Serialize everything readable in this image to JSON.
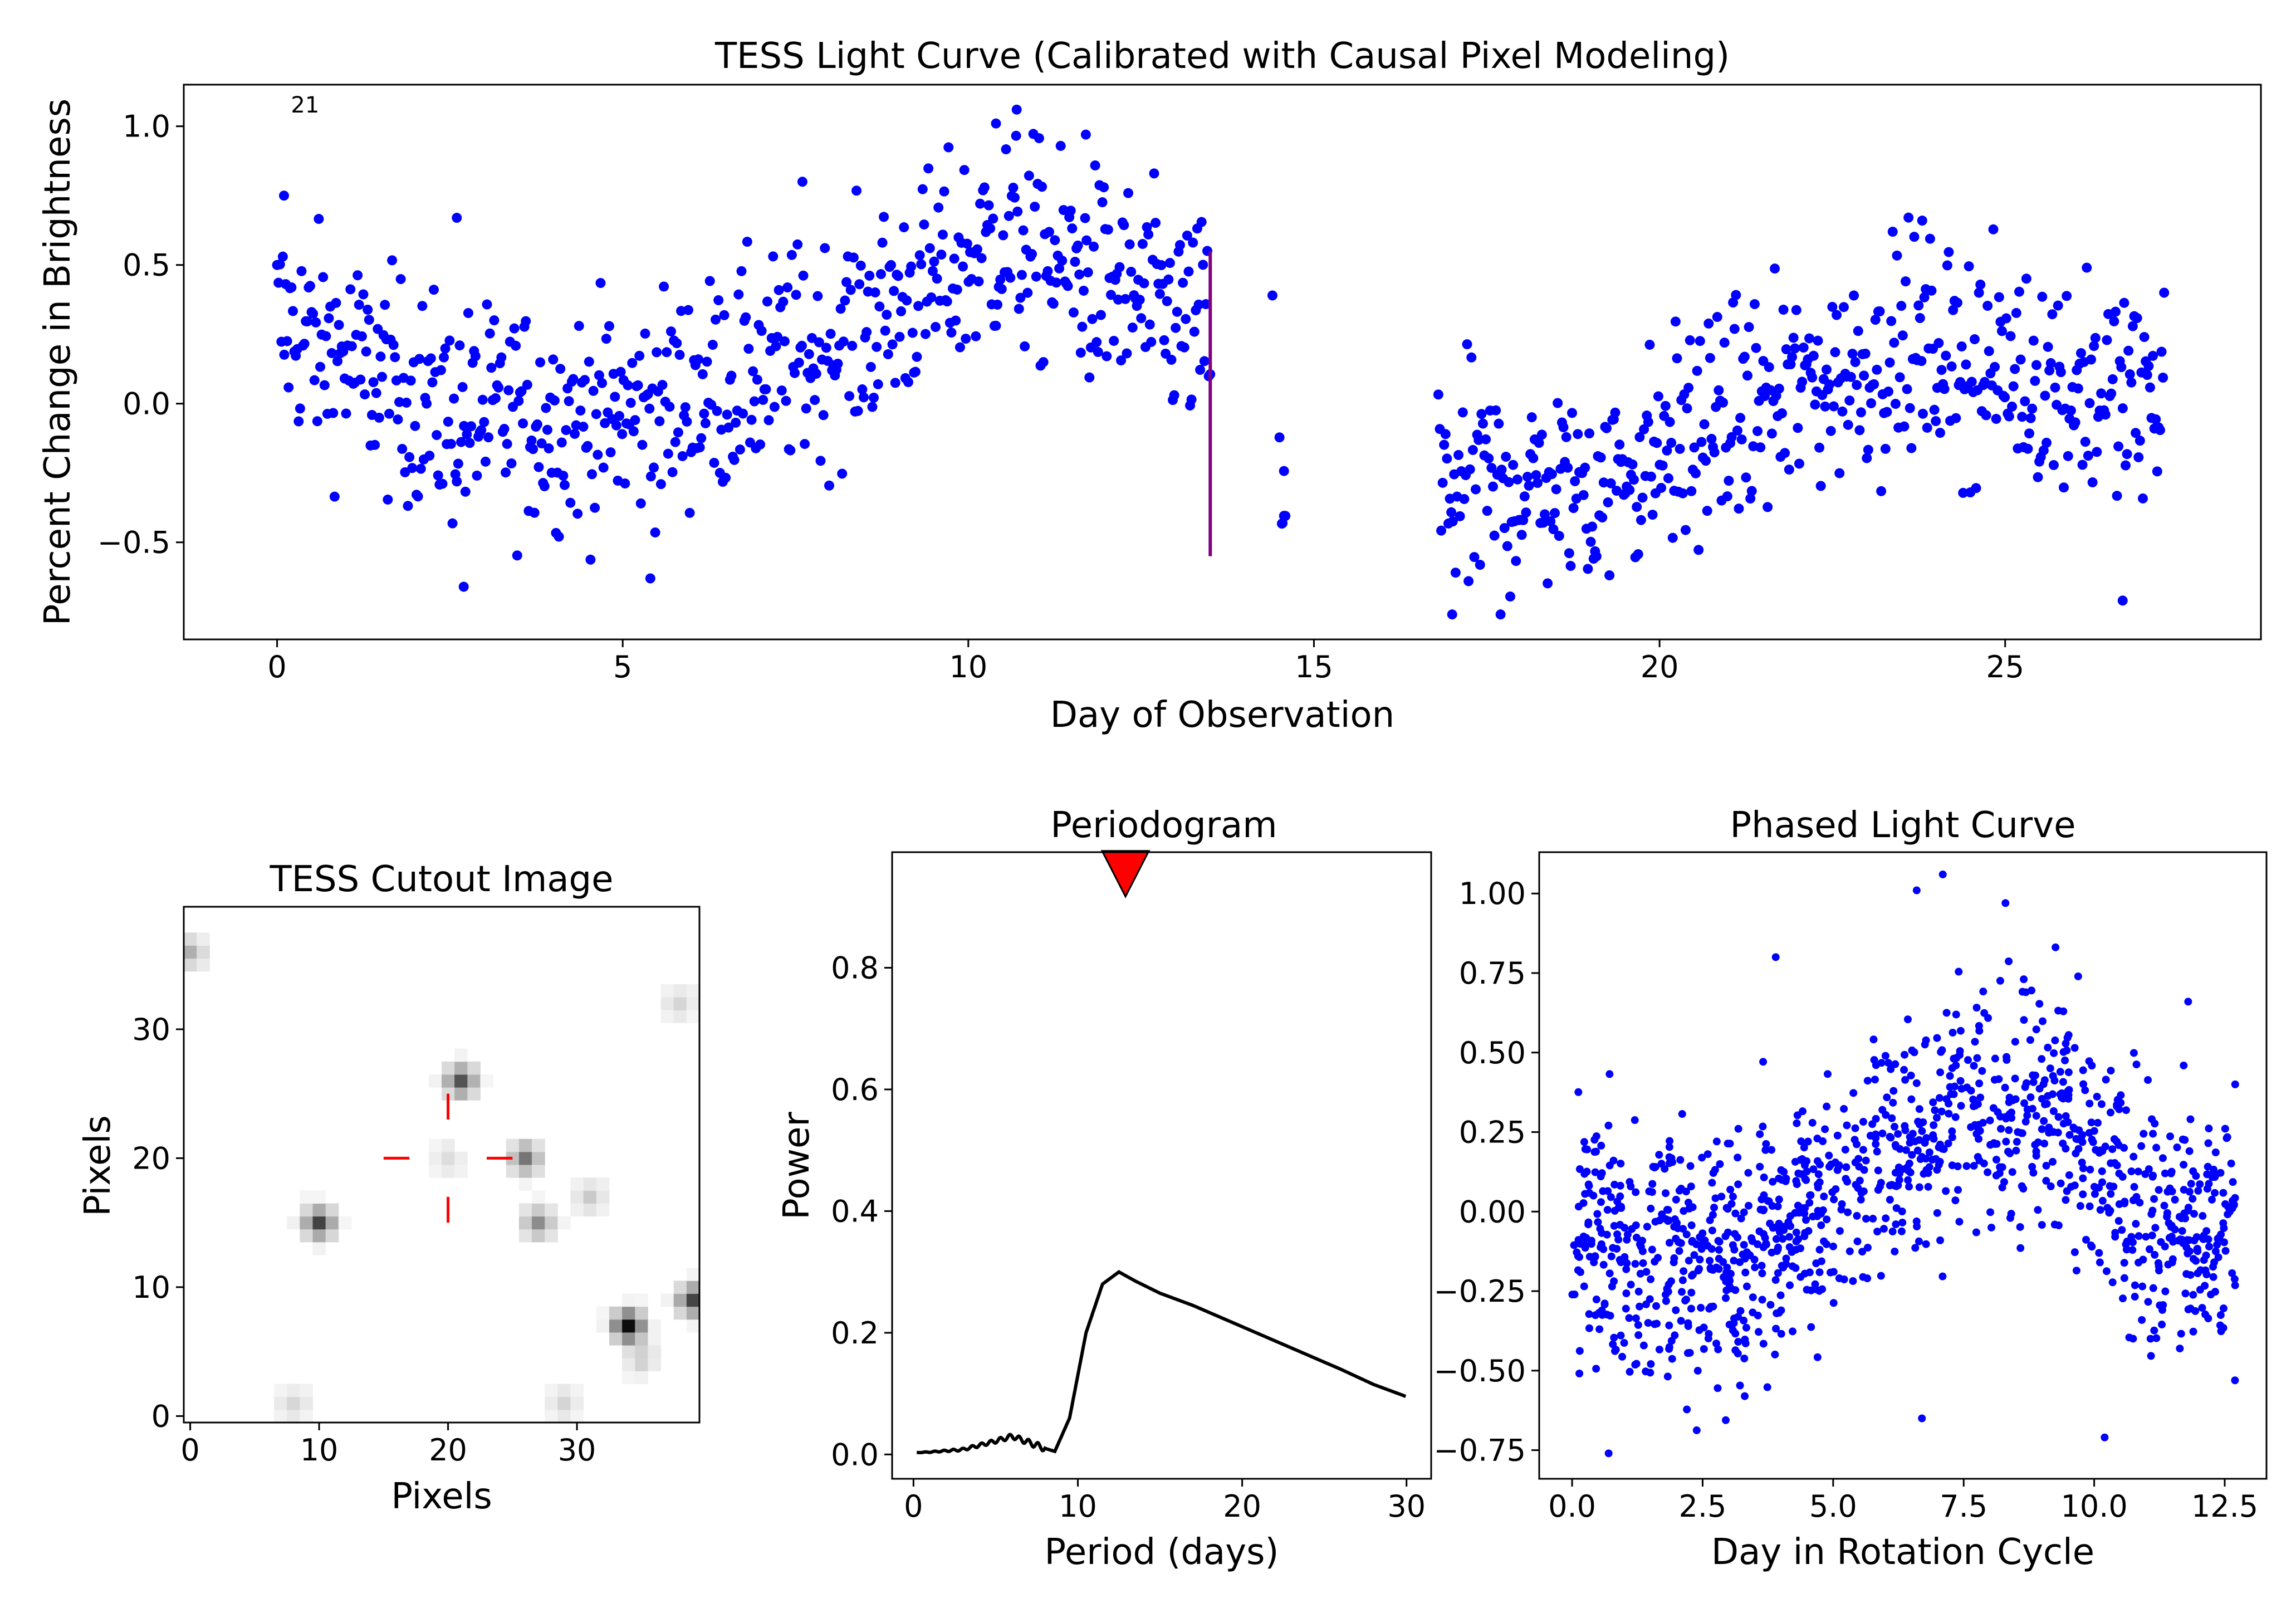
{
  "colors": {
    "points": "#0000ff",
    "marker_line": "#800080",
    "crosshair": "#ff0000",
    "triangle": "#ff0000",
    "curve": "#000000"
  },
  "chart_data": [
    {
      "id": "light-curve",
      "type": "scatter",
      "title": "TESS Light Curve (Calibrated with Causal Pixel Modeling)",
      "xlabel": "Day of Observation",
      "ylabel": "Percent Change in Brightness",
      "xlim": [
        -1.35,
        28.7
      ],
      "ylim": [
        -0.85,
        1.15
      ],
      "xticks": [
        0,
        5,
        10,
        15,
        20,
        25
      ],
      "yticks": [
        -0.5,
        0.0,
        0.5,
        1.0
      ],
      "ytick_labels": [
        "−0.5",
        "0.0",
        "0.5",
        "1.0"
      ],
      "annotation": "21",
      "annotation_pos": [
        0.2,
        1.05
      ],
      "vline": {
        "x": 13.5,
        "y": [
          -0.55,
          0.55
        ]
      },
      "segments": [
        {
          "x_start": 0.0,
          "x_end": 13.5,
          "trend": [
            [
              0,
              0.3
            ],
            [
              2.5,
              -0.05
            ],
            [
              5,
              -0.05
            ],
            [
              8,
              0.2
            ],
            [
              10.5,
              0.6
            ],
            [
              13.5,
              0.25
            ]
          ],
          "scatter": 0.28
        },
        {
          "x_start": 14.5,
          "x_end": 14.6,
          "trend": [
            [
              14.5,
              -0.35
            ],
            [
              14.6,
              -0.35
            ]
          ],
          "scatter": 0.25
        },
        {
          "x_start": 16.8,
          "x_end": 27.3,
          "trend": [
            [
              16.8,
              -0.3
            ],
            [
              19,
              -0.3
            ],
            [
              21,
              -0.05
            ],
            [
              23.5,
              0.2
            ],
            [
              27.3,
              0.0
            ]
          ],
          "scatter": 0.27
        }
      ],
      "sample_points": [
        [
          0.1,
          0.75
        ],
        [
          10.7,
          1.06
        ],
        [
          10.4,
          1.01
        ],
        [
          11.7,
          0.97
        ],
        [
          7.6,
          0.8
        ],
        [
          23.8,
          0.66
        ],
        [
          2.6,
          0.67
        ],
        [
          14.4,
          0.39
        ],
        [
          5.4,
          -0.63
        ],
        [
          2.7,
          -0.66
        ],
        [
          17.0,
          -0.76
        ],
        [
          17.7,
          -0.76
        ],
        [
          26.7,
          -0.71
        ],
        [
          27.3,
          0.4
        ]
      ]
    },
    {
      "id": "cutout",
      "type": "heatmap",
      "title": "TESS Cutout Image",
      "xlabel": "Pixels",
      "ylabel": "Pixels",
      "xlim": [
        -0.5,
        39.5
      ],
      "ylim": [
        -0.5,
        39.5
      ],
      "xticks": [
        0,
        10,
        20,
        30
      ],
      "yticks": [
        0,
        10,
        20,
        30
      ],
      "crosshair_center": [
        20,
        20
      ],
      "sources": [
        [
          21,
          26,
          0.7
        ],
        [
          10,
          15,
          0.75
        ],
        [
          34,
          7,
          1.0
        ],
        [
          26,
          20,
          0.55
        ],
        [
          27,
          15,
          0.45
        ],
        [
          39,
          9,
          0.75
        ],
        [
          0,
          36,
          0.3
        ],
        [
          35,
          4.5,
          0.2
        ],
        [
          31,
          17,
          0.2
        ],
        [
          38,
          32,
          0.15
        ],
        [
          29,
          1,
          0.15
        ],
        [
          8,
          1,
          0.15
        ],
        [
          20,
          20,
          0.12
        ]
      ]
    },
    {
      "id": "periodogram",
      "type": "line",
      "title": "Periodogram",
      "xlabel": "Period (days)",
      "ylabel": "Power",
      "xlim": [
        -1.3,
        31.5
      ],
      "ylim": [
        -0.04,
        0.99
      ],
      "xticks": [
        0,
        10,
        20,
        30
      ],
      "yticks": [
        0.0,
        0.2,
        0.4,
        0.6,
        0.8
      ],
      "marker_period": 12.9,
      "marker_y": 0.95,
      "curve": [
        [
          0.2,
          0.003
        ],
        [
          1,
          0.004
        ],
        [
          2,
          0.006
        ],
        [
          3,
          0.008
        ],
        [
          4,
          0.015
        ],
        [
          5,
          0.022
        ],
        [
          6,
          0.03
        ],
        [
          7,
          0.02
        ],
        [
          8,
          0.01
        ],
        [
          8.6,
          0.005
        ],
        [
          9.5,
          0.06
        ],
        [
          10.5,
          0.2
        ],
        [
          11.5,
          0.28
        ],
        [
          12.5,
          0.3
        ],
        [
          13.5,
          0.285
        ],
        [
          15,
          0.265
        ],
        [
          17,
          0.245
        ],
        [
          20,
          0.21
        ],
        [
          23,
          0.175
        ],
        [
          26,
          0.14
        ],
        [
          28,
          0.115
        ],
        [
          30,
          0.095
        ]
      ]
    },
    {
      "id": "phased",
      "type": "scatter",
      "title": "Phased Light Curve",
      "xlabel": "Day in Rotation Cycle",
      "ylabel": "",
      "xlim": [
        -0.63,
        13.3
      ],
      "ylim": [
        -0.84,
        1.13
      ],
      "xticks": [
        0.0,
        2.5,
        5.0,
        7.5,
        10.0,
        12.5
      ],
      "xtick_labels": [
        "0.0",
        "2.5",
        "5.0",
        "7.5",
        "10.0",
        "12.5"
      ],
      "yticks": [
        -0.75,
        -0.5,
        -0.25,
        0.0,
        0.25,
        0.5,
        0.75,
        1.0
      ],
      "ytick_labels": [
        "−0.75",
        "−0.50",
        "−0.25",
        "0.00",
        "0.25",
        "0.50",
        "0.75",
        "1.00"
      ],
      "period": 12.9,
      "trend": [
        [
          0,
          -0.05
        ],
        [
          2.5,
          -0.2
        ],
        [
          5,
          0.05
        ],
        [
          7.5,
          0.35
        ],
        [
          9.5,
          0.3
        ],
        [
          11,
          -0.05
        ],
        [
          12.7,
          -0.05
        ]
      ],
      "scatter": 0.27,
      "sample_points": [
        [
          7.1,
          1.06
        ],
        [
          6.6,
          1.01
        ],
        [
          8.3,
          0.97
        ],
        [
          3.9,
          0.8
        ],
        [
          11.8,
          0.66
        ],
        [
          0.7,
          -0.76
        ],
        [
          10.2,
          -0.71
        ],
        [
          6.7,
          -0.65
        ],
        [
          12.7,
          0.4
        ]
      ]
    }
  ]
}
